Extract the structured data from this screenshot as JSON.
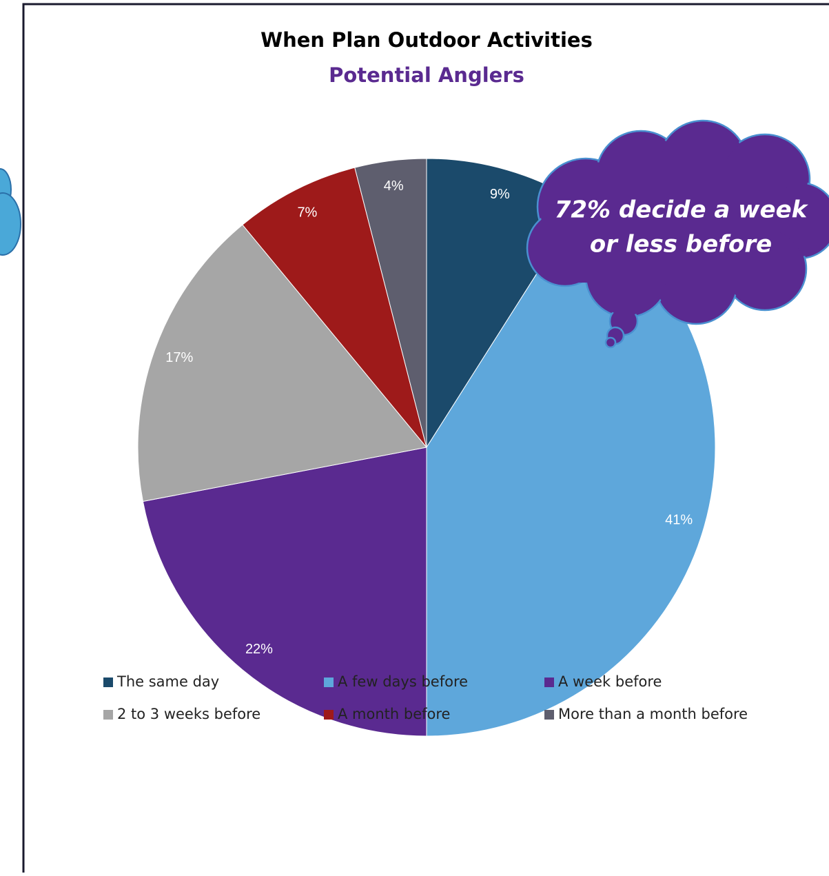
{
  "chart_data": {
    "type": "pie",
    "title": "When Plan Outdoor Activities",
    "subtitle": "Potential Anglers",
    "categories": [
      "The same day",
      "A few days before",
      "A week before",
      "2 to 3 weeks before",
      "A month before",
      "More than a month before"
    ],
    "values": [
      9,
      41,
      22,
      17,
      7,
      4
    ],
    "value_labels": [
      "9%",
      "41%",
      "22%",
      "17%",
      "7%",
      "4%"
    ],
    "colors": [
      "#1b4a6b",
      "#5ea7db",
      "#5a2a90",
      "#a6a6a6",
      "#9e1a1a",
      "#5e5e6e"
    ],
    "annotation": [
      "72% decide a week",
      "or less before"
    ],
    "legend": "bottom"
  }
}
